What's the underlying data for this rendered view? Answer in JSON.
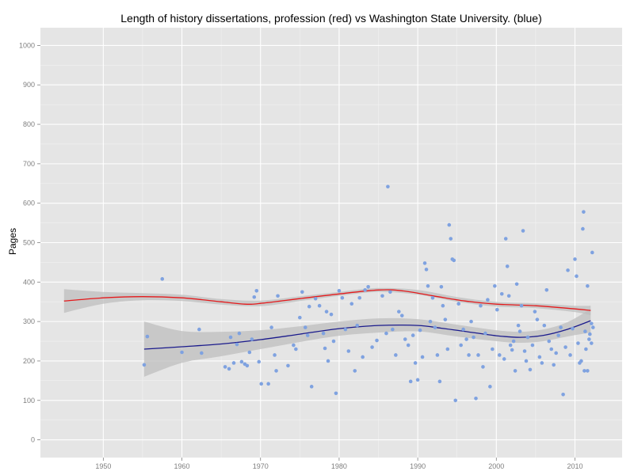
{
  "chart_data": {
    "type": "scatter",
    "title": "Length of history dissertations, profession (red) vs Washington State University. (blue)",
    "xlabel": "",
    "ylabel": "Pages",
    "xlim": [
      1942,
      2016
    ],
    "ylim": [
      -45,
      1045
    ],
    "x_ticks": [
      1950,
      1960,
      1970,
      1980,
      1990,
      2000,
      2010
    ],
    "y_ticks": [
      0,
      100,
      200,
      300,
      400,
      500,
      600,
      700,
      800,
      900,
      1000
    ],
    "grid": true,
    "legend": "none",
    "colors": {
      "panel": "#e5e5e5",
      "grid_major": "#ffffff",
      "grid_minor": "#f2f2f2",
      "points": "#7fa2e0",
      "ribbon": "#bdbdbd",
      "profession_line": "#e41a1c",
      "wsu_line": "#1a1a8c"
    },
    "series": [
      {
        "role": "wsu_points",
        "points": [
          [
            1955.2,
            190
          ],
          [
            1955.6,
            262
          ],
          [
            1957.5,
            408
          ],
          [
            1960,
            222
          ],
          [
            1962.2,
            280
          ],
          [
            1962.5,
            220
          ],
          [
            1965.5,
            185
          ],
          [
            1966,
            180
          ],
          [
            1966.2,
            260
          ],
          [
            1966.6,
            195
          ],
          [
            1967,
            242
          ],
          [
            1967.3,
            270
          ],
          [
            1967.6,
            198
          ],
          [
            1968,
            192
          ],
          [
            1968.3,
            188
          ],
          [
            1968.6,
            222
          ],
          [
            1968.9,
            255
          ],
          [
            1969.2,
            362
          ],
          [
            1969.5,
            378
          ],
          [
            1969.8,
            198
          ],
          [
            1970.1,
            142
          ],
          [
            1971,
            142
          ],
          [
            1971.4,
            285
          ],
          [
            1971.8,
            215
          ],
          [
            1972,
            175
          ],
          [
            1972.2,
            365
          ],
          [
            1973.5,
            188
          ],
          [
            1974.2,
            240
          ],
          [
            1974.5,
            230
          ],
          [
            1975,
            310
          ],
          [
            1975.3,
            375
          ],
          [
            1975.7,
            285
          ],
          [
            1976,
            265
          ],
          [
            1976.2,
            338
          ],
          [
            1976.5,
            135
          ],
          [
            1977,
            358
          ],
          [
            1977.5,
            340
          ],
          [
            1978,
            270
          ],
          [
            1978.2,
            232
          ],
          [
            1978.4,
            325
          ],
          [
            1978.6,
            200
          ],
          [
            1979,
            318
          ],
          [
            1979.3,
            250
          ],
          [
            1979.6,
            118
          ],
          [
            1980,
            378
          ],
          [
            1980.4,
            360
          ],
          [
            1980.8,
            280
          ],
          [
            1981.2,
            225
          ],
          [
            1981.6,
            345
          ],
          [
            1982,
            175
          ],
          [
            1982.3,
            290
          ],
          [
            1982.6,
            360
          ],
          [
            1983,
            210
          ],
          [
            1983.3,
            380
          ],
          [
            1983.7,
            388
          ],
          [
            1984.2,
            235
          ],
          [
            1984.8,
            252
          ],
          [
            1985.5,
            365
          ],
          [
            1986,
            270
          ],
          [
            1986.2,
            642
          ],
          [
            1986.5,
            375
          ],
          [
            1986.8,
            280
          ],
          [
            1987.2,
            215
          ],
          [
            1987.6,
            325
          ],
          [
            1988,
            315
          ],
          [
            1988.4,
            255
          ],
          [
            1988.8,
            240
          ],
          [
            1989.1,
            148
          ],
          [
            1989.4,
            265
          ],
          [
            1989.7,
            195
          ],
          [
            1990,
            152
          ],
          [
            1990.3,
            278
          ],
          [
            1990.6,
            210
          ],
          [
            1990.9,
            448
          ],
          [
            1991.1,
            432
          ],
          [
            1991.3,
            390
          ],
          [
            1991.6,
            300
          ],
          [
            1991.9,
            360
          ],
          [
            1992.2,
            285
          ],
          [
            1992.5,
            215
          ],
          [
            1992.8,
            148
          ],
          [
            1993,
            388
          ],
          [
            1993.2,
            340
          ],
          [
            1993.5,
            305
          ],
          [
            1993.8,
            230
          ],
          [
            1994,
            545
          ],
          [
            1994.2,
            510
          ],
          [
            1994.4,
            458
          ],
          [
            1994.6,
            455
          ],
          [
            1994.8,
            100
          ],
          [
            1995.2,
            345
          ],
          [
            1995.5,
            240
          ],
          [
            1995.8,
            280
          ],
          [
            1996.2,
            255
          ],
          [
            1996.5,
            215
          ],
          [
            1996.8,
            300
          ],
          [
            1997.1,
            260
          ],
          [
            1997.4,
            105
          ],
          [
            1997.7,
            215
          ],
          [
            1998,
            340
          ],
          [
            1998.3,
            185
          ],
          [
            1998.6,
            270
          ],
          [
            1998.9,
            355
          ],
          [
            1999.2,
            135
          ],
          [
            1999.5,
            230
          ],
          [
            1999.8,
            390
          ],
          [
            2000.1,
            330
          ],
          [
            2000.4,
            215
          ],
          [
            2000.7,
            370
          ],
          [
            2001,
            205
          ],
          [
            2001.2,
            510
          ],
          [
            2001.4,
            440
          ],
          [
            2001.6,
            365
          ],
          [
            2001.8,
            240
          ],
          [
            2002,
            228
          ],
          [
            2002.2,
            250
          ],
          [
            2002.4,
            175
          ],
          [
            2002.6,
            395
          ],
          [
            2002.8,
            290
          ],
          [
            2003,
            275
          ],
          [
            2003.2,
            340
          ],
          [
            2003.4,
            530
          ],
          [
            2003.6,
            225
          ],
          [
            2003.8,
            200
          ],
          [
            2004,
            260
          ],
          [
            2004.3,
            178
          ],
          [
            2004.6,
            240
          ],
          [
            2004.9,
            325
          ],
          [
            2005.2,
            305
          ],
          [
            2005.5,
            210
          ],
          [
            2005.8,
            195
          ],
          [
            2006.1,
            290
          ],
          [
            2006.4,
            380
          ],
          [
            2006.7,
            250
          ],
          [
            2007,
            230
          ],
          [
            2007.3,
            190
          ],
          [
            2007.6,
            220
          ],
          [
            2007.9,
            265
          ],
          [
            2008.2,
            285
          ],
          [
            2008.5,
            115
          ],
          [
            2008.8,
            235
          ],
          [
            2009.1,
            430
          ],
          [
            2009.4,
            215
          ],
          [
            2009.7,
            282
          ],
          [
            2010,
            458
          ],
          [
            2010.2,
            415
          ],
          [
            2010.4,
            245
          ],
          [
            2010.6,
            195
          ],
          [
            2010.8,
            200
          ],
          [
            2011,
            535
          ],
          [
            2011.2,
            175
          ],
          [
            2011.4,
            230
          ],
          [
            2011.6,
            390
          ],
          [
            2011.8,
            255
          ],
          [
            2011.1,
            578
          ],
          [
            2011.3,
            275
          ],
          [
            2011.6,
            175
          ],
          [
            2011.9,
            268
          ],
          [
            2012.1,
            245
          ],
          [
            2012.2,
            475
          ],
          [
            2012.3,
            285
          ],
          [
            2012.1,
            295
          ]
        ]
      },
      {
        "role": "profession_smooth",
        "points": [
          [
            1945,
            352
          ],
          [
            1950,
            360
          ],
          [
            1955,
            363
          ],
          [
            1960,
            360
          ],
          [
            1965,
            350
          ],
          [
            1968,
            344
          ],
          [
            1970,
            346
          ],
          [
            1975,
            358
          ],
          [
            1980,
            370
          ],
          [
            1985,
            380
          ],
          [
            1988,
            378
          ],
          [
            1992,
            365
          ],
          [
            1996,
            352
          ],
          [
            2000,
            344
          ],
          [
            2005,
            340
          ],
          [
            2010,
            332
          ],
          [
            2012,
            328
          ]
        ],
        "band": [
          [
            1945,
            322,
            382
          ],
          [
            1950,
            345,
            375
          ],
          [
            1955,
            354,
            372
          ],
          [
            1960,
            352,
            368
          ],
          [
            1965,
            343,
            357
          ],
          [
            1970,
            339,
            353
          ],
          [
            1975,
            352,
            364
          ],
          [
            1980,
            365,
            375
          ],
          [
            1985,
            375,
            385
          ],
          [
            1990,
            368,
            380
          ],
          [
            1995,
            350,
            362
          ],
          [
            2000,
            338,
            350
          ],
          [
            2005,
            334,
            346
          ],
          [
            2010,
            324,
            340
          ],
          [
            2012,
            316,
            340
          ]
        ]
      },
      {
        "role": "wsu_smooth",
        "points": [
          [
            1955.2,
            230
          ],
          [
            1960,
            236
          ],
          [
            1965,
            243
          ],
          [
            1970,
            254
          ],
          [
            1975,
            268
          ],
          [
            1980,
            282
          ],
          [
            1985,
            290
          ],
          [
            1990,
            290
          ],
          [
            1993,
            283
          ],
          [
            1996,
            275
          ],
          [
            2000,
            264
          ],
          [
            2003,
            260
          ],
          [
            2006,
            265
          ],
          [
            2009,
            280
          ],
          [
            2012,
            302
          ]
        ],
        "band": [
          [
            1955.2,
            160,
            300
          ],
          [
            1960,
            195,
            276
          ],
          [
            1965,
            212,
            274
          ],
          [
            1970,
            230,
            278
          ],
          [
            1975,
            248,
            288
          ],
          [
            1980,
            264,
            300
          ],
          [
            1985,
            272,
            308
          ],
          [
            1990,
            275,
            306
          ],
          [
            1995,
            262,
            292
          ],
          [
            2000,
            250,
            278
          ],
          [
            2003,
            246,
            274
          ],
          [
            2006,
            250,
            280
          ],
          [
            2009,
            262,
            298
          ],
          [
            2012,
            272,
            332
          ]
        ]
      }
    ]
  }
}
